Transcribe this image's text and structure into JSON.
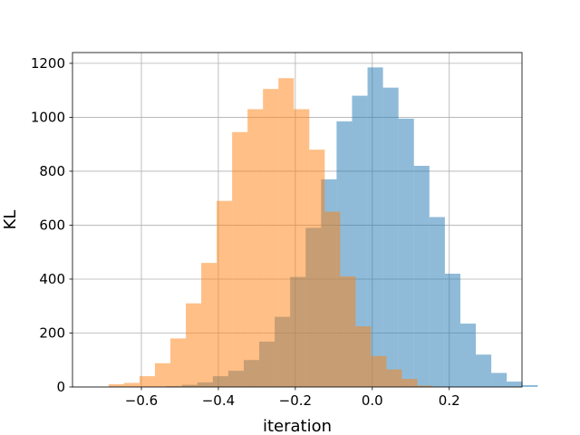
{
  "chart_data": {
    "type": "bar",
    "title": "",
    "xlabel": "iteration",
    "ylabel": "KL",
    "xlim": [
      -0.779,
      0.389
    ],
    "ylim": [
      0,
      1240
    ],
    "xticks": [
      -0.6,
      -0.4,
      -0.2,
      0.0,
      0.2
    ],
    "xtick_labels": [
      "−0.6",
      "−0.4",
      "−0.2",
      "0.0",
      "0.2"
    ],
    "yticks": [
      0,
      200,
      400,
      600,
      800,
      1000,
      1200
    ],
    "ytick_labels": [
      "0",
      "200",
      "400",
      "600",
      "800",
      "1000",
      "1200"
    ],
    "grid": true,
    "legend": false,
    "series": [
      {
        "color": "#1f77b4",
        "alpha": 0.5,
        "bin_start": -0.535,
        "bin_width": 0.0402,
        "values": [
          3,
          8,
          17,
          40,
          60,
          100,
          168,
          260,
          408,
          590,
          770,
          985,
          1080,
          1185,
          1110,
          995,
          820,
          630,
          420,
          235,
          120,
          52,
          20,
          7
        ]
      },
      {
        "color": "#ff7f0e",
        "alpha": 0.5,
        "bin_start": -0.685,
        "bin_width": 0.0401,
        "values": [
          10,
          15,
          40,
          88,
          180,
          310,
          460,
          690,
          945,
          1030,
          1105,
          1145,
          1030,
          880,
          650,
          410,
          225,
          115,
          65,
          30,
          5
        ]
      }
    ]
  }
}
